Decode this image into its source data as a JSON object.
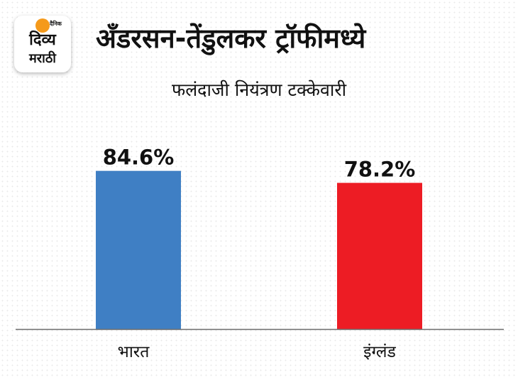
{
  "logo": {
    "small": "दैनिक",
    "line1": "दिव्य",
    "line2": "मराठी"
  },
  "chart_data": {
    "type": "bar",
    "title": "अँडरसन-तेंडुलकर ट्रॉफीमध्ये",
    "subtitle": "फलंदाजी नियंत्रण टक्केवारी",
    "categories": [
      "भारत",
      "इंग्लंड"
    ],
    "values": [
      84.6,
      78.2
    ],
    "value_labels": [
      "84.6%",
      "78.2%"
    ],
    "colors": [
      "#3f7fc4",
      "#ed1c24"
    ],
    "ylim": [
      0,
      100
    ],
    "grid": false,
    "legend": "none",
    "xlabel": "",
    "ylabel": ""
  }
}
